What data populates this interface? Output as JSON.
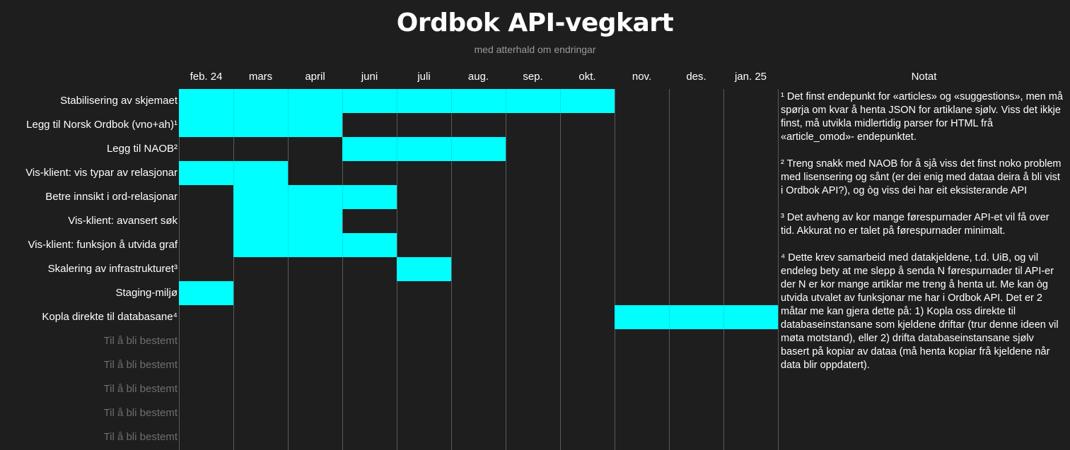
{
  "title": "Ordbok API-vegkart",
  "subtitle": "med atterhald om endringar",
  "months": [
    "feb. 24",
    "mars",
    "april",
    "juni",
    "juli",
    "aug.",
    "sep.",
    "okt.",
    "nov.",
    "des.",
    "jan. 25"
  ],
  "notes_header": "Notat",
  "bar_color": "#00ffff",
  "rows": [
    {
      "label": "Stabilisering av skjemaet",
      "start": 0,
      "end": 8,
      "tbd": false
    },
    {
      "label": "Legg til Norsk Ordbok (vno+ah)¹",
      "start": 0,
      "end": 3,
      "tbd": false
    },
    {
      "label": "Legg til NAOB²",
      "start": 3,
      "end": 6,
      "tbd": false
    },
    {
      "label": "Vis-klient: vis typar av relasjonar",
      "start": 0,
      "end": 2,
      "tbd": false
    },
    {
      "label": "Betre innsikt i ord-relasjonar",
      "start": 1,
      "end": 4,
      "tbd": false
    },
    {
      "label": "Vis-klient: avansert søk",
      "start": 1,
      "end": 3,
      "tbd": false
    },
    {
      "label": "Vis-klient: funksjon å utvida graf",
      "start": 1,
      "end": 4,
      "tbd": false
    },
    {
      "label": "Skalering av infrastrukturet³",
      "start": 4,
      "end": 5,
      "tbd": false
    },
    {
      "label": "Staging-miljø",
      "start": 0,
      "end": 1,
      "tbd": false
    },
    {
      "label": "Kopla direkte til databasane⁴",
      "start": 8,
      "end": 11,
      "tbd": false
    },
    {
      "label": "Til å bli bestemt",
      "start": null,
      "end": null,
      "tbd": true
    },
    {
      "label": "Til å bli bestemt",
      "start": null,
      "end": null,
      "tbd": true
    },
    {
      "label": "Til å bli bestemt",
      "start": null,
      "end": null,
      "tbd": true
    },
    {
      "label": "Til å bli bestemt",
      "start": null,
      "end": null,
      "tbd": true
    },
    {
      "label": "Til å bli bestemt",
      "start": null,
      "end": null,
      "tbd": true
    }
  ],
  "notes": [
    "¹ Det finst endepunkt for «articles» og «suggestions», men må spørja om kvar å henta JSON for artiklane sjølv. Viss det ikkje finst, må utvikla midlertidig parser for HTML frå «article_omod»- endepunktet.",
    "² Treng snakk med NAOB for å sjå viss det finst noko problem med lisensering og sånt (er dei enig med dataa deira å bli vist i Ordbok API?), og òg viss dei har eit eksisterande API",
    "³ Det avheng av kor mange førespurnader API-et vil få over tid. Akkurat no er talet på førespurnader minimalt.",
    "⁴ Dette krev samarbeid med datakjeldene, t.d. UiB, og vil endeleg bety at me slepp å senda N førespurnader til API-er der N er kor mange artiklar me treng å henta ut. Me kan òg utvida utvalet av funksjonar me har i Ordbok API. Det er 2 måtar me kan gjera dette på: 1) Kopla oss direkte til databaseinstansane som kjeldene driftar (trur denne ideen vil møta motstand), eller 2) drifta databaseinstansane sjølv basert på kopiar av dataa (må henta kopiar frå kjeldene når data blir oppdatert)."
  ]
}
